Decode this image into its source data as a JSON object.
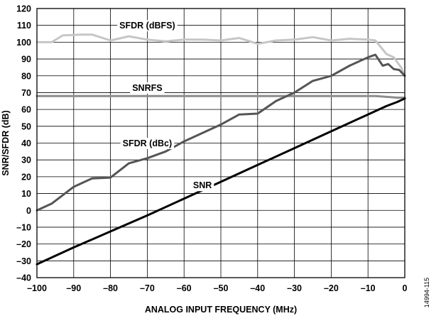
{
  "chart_data": {
    "type": "line",
    "xlabel": "ANALOG INPUT FREQUENCY (MHz)",
    "ylabel": "SNR/SFDR (dB)",
    "xlim": [
      -100,
      0
    ],
    "ylim": [
      -40,
      120
    ],
    "xticks": [
      -100,
      -90,
      -80,
      -70,
      -60,
      -50,
      -40,
      -30,
      -20,
      -10,
      0
    ],
    "yticks": [
      -40,
      -30,
      -20,
      -10,
      0,
      10,
      20,
      30,
      40,
      50,
      60,
      70,
      80,
      90,
      100,
      110,
      120
    ],
    "grid": true,
    "series": [
      {
        "name": "SFDR (dBFS)",
        "color": "#c6c6c6",
        "points": [
          [
            -100,
            100
          ],
          [
            -96,
            100
          ],
          [
            -93,
            104
          ],
          [
            -88,
            104.5
          ],
          [
            -85,
            104.5
          ],
          [
            -80,
            101
          ],
          [
            -75,
            103.5
          ],
          [
            -70,
            101.5
          ],
          [
            -65,
            100.5
          ],
          [
            -60,
            101.5
          ],
          [
            -55,
            101.5
          ],
          [
            -50,
            101
          ],
          [
            -45,
            102.5
          ],
          [
            -40,
            99
          ],
          [
            -35,
            101
          ],
          [
            -30,
            101.5
          ],
          [
            -25,
            103
          ],
          [
            -20,
            101
          ],
          [
            -15,
            102
          ],
          [
            -10,
            101.5
          ],
          [
            -8,
            101
          ],
          [
            -5,
            93
          ],
          [
            -3,
            91
          ],
          [
            -1,
            85
          ],
          [
            0,
            80
          ]
        ]
      },
      {
        "name": "SNRFS",
        "color": "#8c8c8c",
        "points": [
          [
            -100,
            68
          ],
          [
            -80,
            68
          ],
          [
            -60,
            68
          ],
          [
            -40,
            68
          ],
          [
            -20,
            68
          ],
          [
            -8,
            68
          ],
          [
            -5,
            67.5
          ],
          [
            -2,
            67
          ],
          [
            0,
            67
          ]
        ]
      },
      {
        "name": "SFDR (dBc)",
        "color": "#555555",
        "points": [
          [
            -100,
            0
          ],
          [
            -96,
            4
          ],
          [
            -90,
            14
          ],
          [
            -85,
            19
          ],
          [
            -80,
            19.5
          ],
          [
            -75,
            28
          ],
          [
            -70,
            31
          ],
          [
            -65,
            35
          ],
          [
            -60,
            41
          ],
          [
            -55,
            46
          ],
          [
            -50,
            51
          ],
          [
            -45,
            57
          ],
          [
            -40,
            57.5
          ],
          [
            -35,
            65
          ],
          [
            -30,
            70
          ],
          [
            -25,
            77
          ],
          [
            -20,
            80
          ],
          [
            -15,
            86
          ],
          [
            -10,
            91
          ],
          [
            -8,
            92.5
          ],
          [
            -6,
            86
          ],
          [
            -4.5,
            87
          ],
          [
            -3,
            84
          ],
          [
            -1.5,
            83.5
          ],
          [
            0,
            80
          ]
        ]
      },
      {
        "name": "SNR",
        "color": "#000000",
        "points": [
          [
            -100,
            -32
          ],
          [
            -90,
            -22
          ],
          [
            -80,
            -12.5
          ],
          [
            -70,
            -3
          ],
          [
            -60,
            7
          ],
          [
            -50,
            17
          ],
          [
            -40,
            27
          ],
          [
            -30,
            37
          ],
          [
            -20,
            47
          ],
          [
            -10,
            57
          ],
          [
            -5,
            62
          ],
          [
            -2,
            64.5
          ],
          [
            0,
            66.5
          ]
        ]
      }
    ],
    "annotations": [
      {
        "text": "SFDR (dBFS)",
        "x": -70,
        "y": 110
      },
      {
        "text": "SNRFS",
        "x": -70,
        "y": 73
      },
      {
        "text": "SFDR (dBc)",
        "x": -70,
        "y": 40
      },
      {
        "text": "SNR",
        "x": -55,
        "y": 15
      }
    ],
    "figure_id": "14994-115"
  }
}
